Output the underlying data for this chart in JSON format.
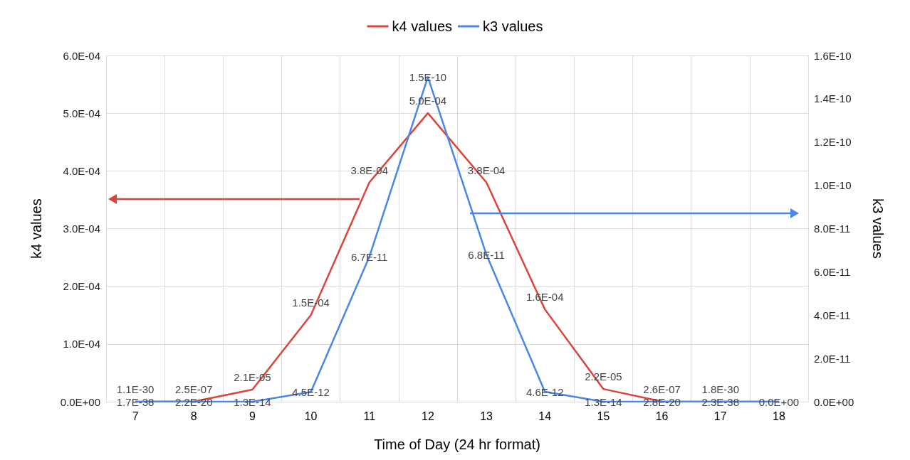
{
  "chart_data": {
    "type": "line",
    "xlabel": "Time of Day (24 hr format)",
    "ylabel": "k4 values",
    "y2label": "k3 values",
    "categories": [
      "7",
      "8",
      "9",
      "10",
      "11",
      "12",
      "13",
      "14",
      "15",
      "16",
      "17",
      "18"
    ],
    "series": [
      {
        "name": "k4 values",
        "color": "#d9453b",
        "values": [
          1.1e-30,
          2.5e-07,
          2.1e-05,
          0.00015,
          0.00038,
          0.0005,
          0.00038,
          0.00016,
          2.2e-05,
          2.6e-07,
          1.8e-30,
          0
        ],
        "value_labels": [
          "1.1E-30",
          "2.5E-07",
          "2.1E-05",
          "1.5E-04",
          "3.8E-04",
          "5.0E-04",
          "3.8E-04",
          "1.6E-04",
          "2.2E-05",
          "2.6E-07",
          "1.8E-30",
          null
        ]
      },
      {
        "name": "k3 values",
        "color": "#4a87e8",
        "axis": "y2",
        "values": [
          1.7e-38,
          2.2e-20,
          1.3e-14,
          4.5e-12,
          6.7e-11,
          1.5e-10,
          6.8e-11,
          4.6e-12,
          1.3e-14,
          2.8e-20,
          2.3e-38,
          0
        ],
        "value_labels": [
          "1.7E-38",
          "2.2E-20",
          "1.3E-14",
          "4.5E-12",
          "6.7E-11",
          "1.5E-10",
          "6.8E-11",
          "4.6E-12",
          "1.3E-14",
          "2.8E-20",
          "2.3E-38",
          "0.0E+00"
        ]
      }
    ],
    "ylim": [
      0,
      0.0006
    ],
    "yticks": [
      {
        "value": 0,
        "label": "0.0E+00"
      },
      {
        "value": 0.0001,
        "label": "1.0E-04"
      },
      {
        "value": 0.0002,
        "label": "2.0E-04"
      },
      {
        "value": 0.0003,
        "label": "3.0E-04"
      },
      {
        "value": 0.0004,
        "label": "4.0E-04"
      },
      {
        "value": 0.0005,
        "label": "5.0E-04"
      },
      {
        "value": 0.0006,
        "label": "6.0E-04"
      }
    ],
    "y2lim": [
      0,
      1.6e-10
    ],
    "y2ticks": [
      {
        "value": 0,
        "label": "0.0E+00"
      },
      {
        "value": 2e-11,
        "label": "2.0E-11"
      },
      {
        "value": 4e-11,
        "label": "4.0E-11"
      },
      {
        "value": 6e-11,
        "label": "6.0E-11"
      },
      {
        "value": 8e-11,
        "label": "8.0E-11"
      },
      {
        "value": 1e-10,
        "label": "1.0E-10"
      },
      {
        "value": 1.2e-10,
        "label": "1.2E-10"
      },
      {
        "value": 1.4e-10,
        "label": "1.4E-10"
      },
      {
        "value": 1.6e-10,
        "label": "1.6E-10"
      }
    ],
    "grid": true,
    "legend": "top",
    "marker": "none",
    "line_style": "solid"
  }
}
